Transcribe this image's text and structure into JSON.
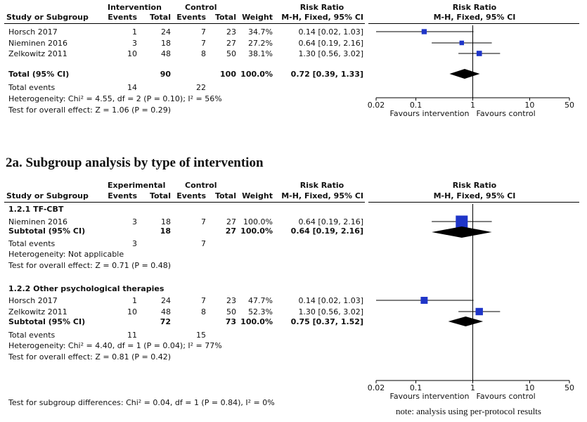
{
  "chart_data": [
    {
      "type": "forest",
      "title": "",
      "header": {
        "study_col": "Study or Subgroup",
        "group1_name": "Intervention",
        "group2_name": "Control",
        "events": "Events",
        "total": "Total",
        "weight": "Weight",
        "rr_col_title": "Risk Ratio",
        "rr_col_method": "M-H, Fixed, 95% CI",
        "plot_title": "Risk Ratio",
        "plot_method": "M-H, Fixed, 95% CI"
      },
      "studies": [
        {
          "name": "Horsch 2017",
          "e1": "1",
          "n1": "24",
          "e2": "7",
          "n2": "23",
          "weight": "34.7%",
          "ci_text": "0.14 [0.02, 1.03]",
          "rr": 0.14,
          "lo": 0.02,
          "hi": 1.03,
          "w": 34.7
        },
        {
          "name": "Nieminen 2016",
          "e1": "3",
          "n1": "18",
          "e2": "7",
          "n2": "27",
          "weight": "27.2%",
          "ci_text": "0.64 [0.19, 2.16]",
          "rr": 0.64,
          "lo": 0.19,
          "hi": 2.16,
          "w": 27.2
        },
        {
          "name": "Zelkowitz 2011",
          "e1": "10",
          "n1": "48",
          "e2": "8",
          "n2": "50",
          "weight": "38.1%",
          "ci_text": "1.30 [0.56, 3.02]",
          "rr": 1.3,
          "lo": 0.56,
          "hi": 3.02,
          "w": 38.1
        }
      ],
      "total": {
        "name": "Total (95% CI)",
        "n1": "90",
        "n2": "100",
        "weight": "100.0%",
        "ci_text": "0.72 [0.39, 1.33]",
        "rr": 0.72,
        "lo": 0.39,
        "hi": 1.33
      },
      "total_events": {
        "label": "Total events",
        "e1": "14",
        "e2": "22"
      },
      "heterogeneity": "Heterogeneity: Chi² = 4.55, df = 2 (P = 0.10); I² = 56%",
      "overall_effect": "Test for overall effect: Z = 1.06 (P = 0.29)",
      "axis": {
        "scale": "log",
        "ticks": [
          0.02,
          0.1,
          1,
          10,
          50
        ],
        "tick_labels": [
          "0.02",
          "0.1",
          "1",
          "10",
          "50"
        ],
        "left_label": "Favours intervention",
        "right_label": "Favours control"
      }
    },
    {
      "type": "forest",
      "title": "2a. Subgroup analysis by type of intervention",
      "header": {
        "study_col": "Study or Subgroup",
        "group1_name": "Experimental",
        "group2_name": "Control",
        "events": "Events",
        "total": "Total",
        "weight": "Weight",
        "rr_col_title": "Risk Ratio",
        "rr_col_method": "M-H, Fixed, 95% CI",
        "plot_title": "Risk Ratio",
        "plot_method": "M-H, Fixed, 95% CI"
      },
      "subgroups": [
        {
          "title": "1.2.1 TF-CBT",
          "studies": [
            {
              "name": "Nieminen 2016",
              "e1": "3",
              "n1": "18",
              "e2": "7",
              "n2": "27",
              "weight": "100.0%",
              "ci_text": "0.64 [0.19, 2.16]",
              "rr": 0.64,
              "lo": 0.19,
              "hi": 2.16,
              "w": 100.0
            }
          ],
          "subtotal": {
            "name": "Subtotal (95% CI)",
            "n1": "18",
            "n2": "27",
            "weight": "100.0%",
            "ci_text": "0.64 [0.19, 2.16]",
            "rr": 0.64,
            "lo": 0.19,
            "hi": 2.16
          },
          "total_events": {
            "label": "Total events",
            "e1": "3",
            "e2": "7"
          },
          "heterogeneity": "Heterogeneity: Not applicable",
          "overall_effect": "Test for overall effect: Z = 0.71 (P = 0.48)"
        },
        {
          "title": "1.2.2 Other psychological therapies",
          "studies": [
            {
              "name": "Horsch 2017",
              "e1": "1",
              "n1": "24",
              "e2": "7",
              "n2": "23",
              "weight": "47.7%",
              "ci_text": "0.14 [0.02, 1.03]",
              "rr": 0.14,
              "lo": 0.02,
              "hi": 1.03,
              "w": 47.7
            },
            {
              "name": "Zelkowitz 2011",
              "e1": "10",
              "n1": "48",
              "e2": "8",
              "n2": "50",
              "weight": "52.3%",
              "ci_text": "1.30 [0.56, 3.02]",
              "rr": 1.3,
              "lo": 0.56,
              "hi": 3.02,
              "w": 52.3
            }
          ],
          "subtotal": {
            "name": "Subtotal (95% CI)",
            "n1": "72",
            "n2": "73",
            "weight": "100.0%",
            "ci_text": "0.75 [0.37, 1.52]",
            "rr": 0.75,
            "lo": 0.37,
            "hi": 1.52
          },
          "total_events": {
            "label": "Total events",
            "e1": "11",
            "e2": "15"
          },
          "heterogeneity": "Heterogeneity: Chi² = 4.40, df = 1 (P = 0.04); I² = 77%",
          "overall_effect": "Test for overall effect: Z = 0.81 (P = 0.42)"
        }
      ],
      "subgroup_difference": "Test for subgroup differences: Chi² = 0.04, df = 1 (P = 0.84), I² = 0%",
      "note": "note: analysis using per-protocol results",
      "axis": {
        "scale": "log",
        "ticks": [
          0.02,
          0.1,
          1,
          10,
          50
        ],
        "tick_labels": [
          "0.02",
          "0.1",
          "1",
          "10",
          "50"
        ],
        "left_label": "Favours intervention",
        "right_label": "Favours control"
      }
    }
  ],
  "colors": {
    "marker": "#1f35c8",
    "diamond": "#000000",
    "line": "#000000"
  }
}
